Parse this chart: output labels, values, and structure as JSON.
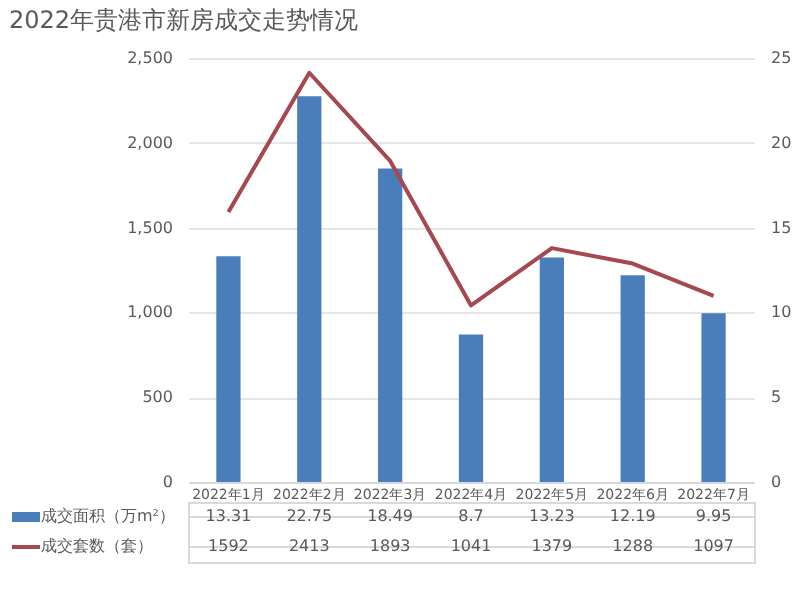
{
  "chart_data": {
    "type": "bar",
    "title": "2022年贵港市新房成交走势情况",
    "categories": [
      "2022年1月",
      "2022年2月",
      "2022年3月",
      "2022年4月",
      "2022年5月",
      "2022年6月",
      "2022年7月"
    ],
    "series": [
      {
        "name": "成交面积（万m²）",
        "axis": "y2",
        "color": "#4a7ebb",
        "values": [
          13.31,
          22.75,
          18.49,
          8.7,
          13.23,
          12.19,
          9.95
        ]
      },
      {
        "name": "成交套数（套）",
        "type": "line",
        "color": "#a5484f",
        "values": [
          1592,
          2413,
          1893,
          1041,
          1379,
          1288,
          1097
        ]
      }
    ],
    "ylim": [
      0,
      2500
    ],
    "yticks": [
      0,
      500,
      {
        "value": 1000,
        "label": "1,000"
      },
      {
        "value": 1500,
        "label": "1,500"
      },
      {
        "value": 2000,
        "label": "2,000"
      },
      {
        "value": 2500,
        "label": "2,500"
      }
    ],
    "y2lim": [
      0,
      25
    ],
    "y2ticks": [
      0,
      5,
      10,
      15,
      20,
      25
    ],
    "grid": "y",
    "legend": "bottom",
    "data_labels": true
  }
}
